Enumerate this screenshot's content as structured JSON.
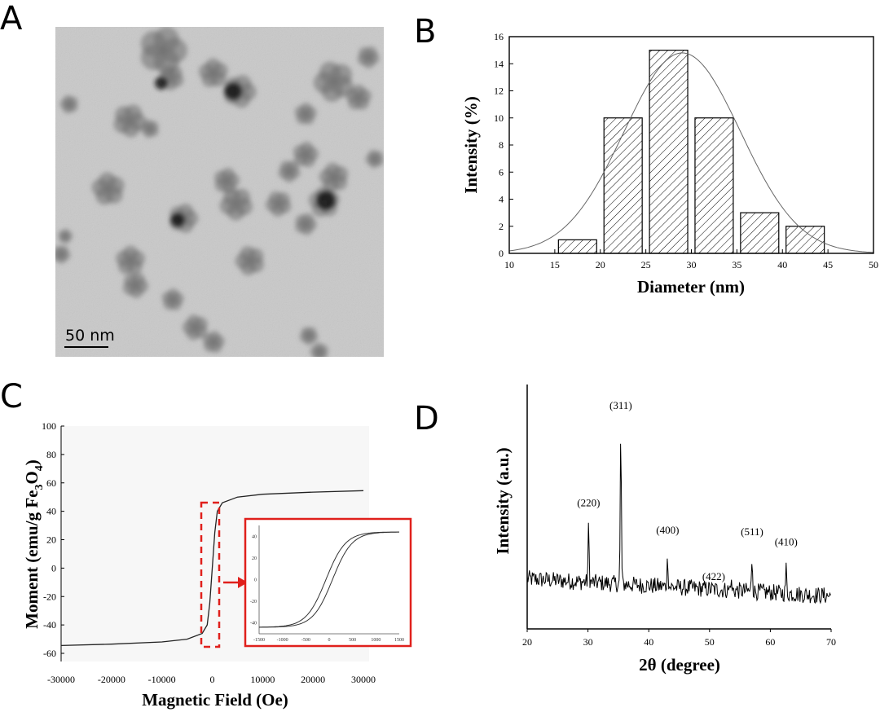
{
  "panel_labels": {
    "a": "A",
    "b": "B",
    "c": "C",
    "d": "D"
  },
  "panel_a": {
    "scale_bar_label": "50 nm"
  },
  "chart_data": [
    {
      "id": "B",
      "type": "bar",
      "categories": [
        17.5,
        22.5,
        27.5,
        32.5,
        37.5,
        42.5
      ],
      "values": [
        1,
        10,
        15,
        10,
        3,
        2
      ],
      "bin_width": 5,
      "fit": {
        "type": "gaussian",
        "center": 29,
        "sigma": 6.4,
        "amplitude": 14.8
      },
      "xlabel": "Diameter (nm)",
      "ylabel": "Intensity (%)",
      "xlim": [
        10,
        50
      ],
      "ylim": [
        0,
        16
      ],
      "xticks": [
        "10",
        "15",
        "20",
        "25",
        "30",
        "35",
        "40",
        "45",
        "50"
      ],
      "yticks": [
        "0",
        "2",
        "4",
        "6",
        "8",
        "10",
        "12",
        "14",
        "16"
      ],
      "grid": false
    },
    {
      "id": "C",
      "type": "line",
      "series": [
        {
          "x": [
            -30000,
            -20000,
            -10000,
            -5000,
            -2000,
            -1000,
            -500,
            0,
            500,
            1000,
            2000,
            5000,
            10000,
            20000,
            30000
          ],
          "y": [
            -54.5,
            -53.5,
            -52,
            -50,
            -46,
            -40,
            -25,
            0,
            25,
            40,
            46,
            50,
            52,
            53.5,
            54.5
          ]
        }
      ],
      "xlabel": "Magnetic Field (Oe)",
      "ylabel": "Moment (emu/g Fe3O4)",
      "ylabel_parts": {
        "pre": "Moment (emu/g Fe",
        "sub1": "3",
        "mid": "O",
        "sub2": "4",
        "post": ")"
      },
      "xlim": [
        -30000,
        30000
      ],
      "ylim": [
        -60,
        100
      ],
      "xticks": [
        "-30000",
        "-20000",
        "-10000",
        "0",
        "10000",
        "20000",
        "30000"
      ],
      "yticks": [
        "-60",
        "-40",
        "-20",
        "0",
        "20",
        "40",
        "60",
        "80",
        "100"
      ],
      "highlight_color": "#e0201c",
      "inset": {
        "xlim": [
          -1500,
          1500
        ],
        "ylim": [
          -50,
          50
        ],
        "xticks": [
          "-1500",
          "-1000",
          "-500",
          "0",
          "500",
          "1000",
          "1500"
        ],
        "yticks": [
          "40",
          "20",
          "0",
          "-20",
          "-40"
        ],
        "coercivity": 70
      }
    },
    {
      "id": "D",
      "type": "line",
      "xlabel": "2θ (degree)",
      "ylabel": "Intensity (a.u.)",
      "xlim": [
        20,
        70
      ],
      "xticks": [
        "20",
        "30",
        "40",
        "50",
        "60",
        "70"
      ],
      "peaks": [
        {
          "x": 30.1,
          "label": "(220)",
          "height": 0.22
        },
        {
          "x": 35.4,
          "label": "(311)",
          "height": 0.62
        },
        {
          "x": 43.1,
          "label": "(400)",
          "height": 0.12
        },
        {
          "x": 53.5,
          "label": "(422)",
          "height": 0.04
        },
        {
          "x": 57.0,
          "label": "(511)",
          "height": 0.14
        },
        {
          "x": 62.6,
          "label": "(410)",
          "height": 0.1
        }
      ]
    }
  ]
}
